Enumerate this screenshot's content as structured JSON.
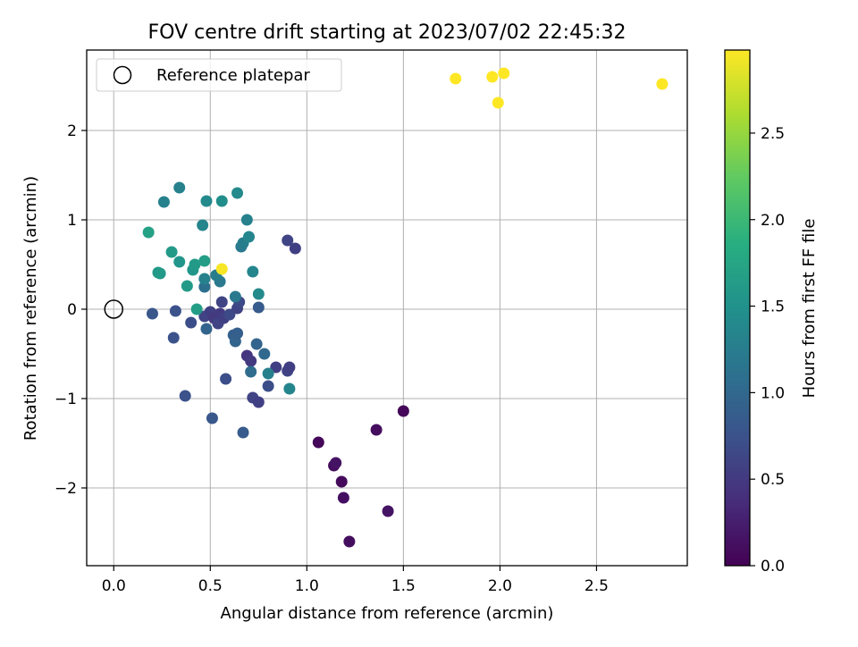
{
  "chart_data": {
    "type": "scatter",
    "title": "FOV centre drift starting at 2023/07/02 22:45:32",
    "xlabel": "Angular distance from reference (arcmin)",
    "ylabel": "Rotation from reference (arcmin)",
    "xlim": [
      -0.14,
      2.97
    ],
    "ylim": [
      -2.87,
      2.9
    ],
    "xticks": [
      "0.0",
      "0.5",
      "1.0",
      "1.5",
      "2.0",
      "2.5"
    ],
    "yticks": [
      "−2",
      "−1",
      "0",
      "1",
      "2"
    ],
    "grid": true,
    "legend_position": "upper-left",
    "reference": {
      "label": "Reference platepar",
      "x": 0.0,
      "y": 0.0
    },
    "colorbar": {
      "label": "Hours from first FF file",
      "range": [
        0.0,
        2.98
      ],
      "ticks": [
        "0.0",
        "0.5",
        "1.0",
        "1.5",
        "2.0",
        "2.5"
      ],
      "colormap": "viridis"
    },
    "points": [
      {
        "x": 1.06,
        "y": -1.49,
        "h": 0.05
      },
      {
        "x": 1.14,
        "y": -1.75,
        "h": 0.1
      },
      {
        "x": 1.15,
        "y": -1.72,
        "h": 0.15
      },
      {
        "x": 1.18,
        "y": -1.93,
        "h": 0.08
      },
      {
        "x": 1.19,
        "y": -2.11,
        "h": 0.12
      },
      {
        "x": 1.22,
        "y": -2.6,
        "h": 0.1
      },
      {
        "x": 1.36,
        "y": -1.35,
        "h": 0.1
      },
      {
        "x": 1.42,
        "y": -2.26,
        "h": 0.15
      },
      {
        "x": 1.5,
        "y": -1.14,
        "h": 0.05
      },
      {
        "x": 0.69,
        "y": -0.52,
        "h": 0.45
      },
      {
        "x": 0.71,
        "y": -0.58,
        "h": 0.5
      },
      {
        "x": 0.72,
        "y": -0.99,
        "h": 0.6
      },
      {
        "x": 0.75,
        "y": -1.04,
        "h": 0.55
      },
      {
        "x": 0.84,
        "y": -0.65,
        "h": 0.55
      },
      {
        "x": 0.9,
        "y": -0.69,
        "h": 0.6
      },
      {
        "x": 0.91,
        "y": -0.65,
        "h": 0.55
      },
      {
        "x": 0.9,
        "y": 0.77,
        "h": 0.6
      },
      {
        "x": 0.94,
        "y": 0.68,
        "h": 0.55
      },
      {
        "x": 0.8,
        "y": -0.86,
        "h": 0.7
      },
      {
        "x": 0.58,
        "y": -0.78,
        "h": 0.7
      },
      {
        "x": 0.37,
        "y": -0.97,
        "h": 0.75
      },
      {
        "x": 0.51,
        "y": -1.22,
        "h": 0.8
      },
      {
        "x": 0.67,
        "y": -1.38,
        "h": 0.85
      },
      {
        "x": 0.31,
        "y": -0.32,
        "h": 0.75
      },
      {
        "x": 0.2,
        "y": -0.05,
        "h": 0.8
      },
      {
        "x": 0.32,
        "y": -0.02,
        "h": 0.75
      },
      {
        "x": 0.4,
        "y": -0.15,
        "h": 0.7
      },
      {
        "x": 0.47,
        "y": -0.08,
        "h": 0.6
      },
      {
        "x": 0.5,
        "y": -0.03,
        "h": 0.55
      },
      {
        "x": 0.52,
        "y": -0.1,
        "h": 0.5
      },
      {
        "x": 0.54,
        "y": -0.16,
        "h": 0.6
      },
      {
        "x": 0.55,
        "y": -0.05,
        "h": 0.5
      },
      {
        "x": 0.57,
        "y": -0.1,
        "h": 0.55
      },
      {
        "x": 0.56,
        "y": 0.08,
        "h": 0.6
      },
      {
        "x": 0.6,
        "y": -0.06,
        "h": 0.65
      },
      {
        "x": 0.64,
        "y": 0.01,
        "h": 0.6
      },
      {
        "x": 0.65,
        "y": 0.08,
        "h": 0.65
      },
      {
        "x": 0.48,
        "y": -0.22,
        "h": 0.95
      },
      {
        "x": 0.62,
        "y": -0.29,
        "h": 0.9
      },
      {
        "x": 0.63,
        "y": -0.36,
        "h": 0.95
      },
      {
        "x": 0.64,
        "y": -0.27,
        "h": 0.9
      },
      {
        "x": 0.74,
        "y": -0.39,
        "h": 0.95
      },
      {
        "x": 0.78,
        "y": -0.5,
        "h": 1.0
      },
      {
        "x": 0.71,
        "y": -0.7,
        "h": 1.05
      },
      {
        "x": 0.8,
        "y": -0.72,
        "h": 1.3
      },
      {
        "x": 0.91,
        "y": -0.89,
        "h": 1.35
      },
      {
        "x": 0.75,
        "y": 0.02,
        "h": 0.85
      },
      {
        "x": 0.63,
        "y": 0.14,
        "h": 1.2
      },
      {
        "x": 0.47,
        "y": 0.25,
        "h": 1.1
      },
      {
        "x": 0.55,
        "y": 0.31,
        "h": 1.2
      },
      {
        "x": 0.47,
        "y": 0.34,
        "h": 1.3
      },
      {
        "x": 0.53,
        "y": 0.38,
        "h": 1.25
      },
      {
        "x": 0.72,
        "y": 0.42,
        "h": 1.35
      },
      {
        "x": 0.75,
        "y": 0.17,
        "h": 1.4
      },
      {
        "x": 0.66,
        "y": 0.7,
        "h": 1.2
      },
      {
        "x": 0.67,
        "y": 0.74,
        "h": 1.25
      },
      {
        "x": 0.69,
        "y": 1.0,
        "h": 1.3
      },
      {
        "x": 0.7,
        "y": 0.81,
        "h": 1.35
      },
      {
        "x": 0.64,
        "y": 1.3,
        "h": 1.4
      },
      {
        "x": 0.56,
        "y": 1.21,
        "h": 1.45
      },
      {
        "x": 0.48,
        "y": 1.21,
        "h": 1.4
      },
      {
        "x": 0.46,
        "y": 0.94,
        "h": 1.35
      },
      {
        "x": 0.34,
        "y": 1.36,
        "h": 1.3
      },
      {
        "x": 0.26,
        "y": 1.2,
        "h": 1.3
      },
      {
        "x": 0.18,
        "y": 0.86,
        "h": 1.7
      },
      {
        "x": 0.3,
        "y": 0.64,
        "h": 1.6
      },
      {
        "x": 0.34,
        "y": 0.53,
        "h": 1.55
      },
      {
        "x": 0.24,
        "y": 0.4,
        "h": 1.55
      },
      {
        "x": 0.23,
        "y": 0.41,
        "h": 1.6
      },
      {
        "x": 0.38,
        "y": 0.26,
        "h": 1.6
      },
      {
        "x": 0.41,
        "y": 0.44,
        "h": 1.55
      },
      {
        "x": 0.42,
        "y": 0.5,
        "h": 1.6
      },
      {
        "x": 0.47,
        "y": 0.54,
        "h": 1.65
      },
      {
        "x": 0.43,
        "y": 0.0,
        "h": 1.65
      },
      {
        "x": 0.56,
        "y": 0.45,
        "h": 2.95
      },
      {
        "x": 1.77,
        "y": 2.58,
        "h": 2.98
      },
      {
        "x": 1.96,
        "y": 2.6,
        "h": 2.98
      },
      {
        "x": 2.02,
        "y": 2.64,
        "h": 2.98
      },
      {
        "x": 1.99,
        "y": 2.31,
        "h": 2.98
      },
      {
        "x": 2.84,
        "y": 2.52,
        "h": 2.98
      }
    ]
  }
}
